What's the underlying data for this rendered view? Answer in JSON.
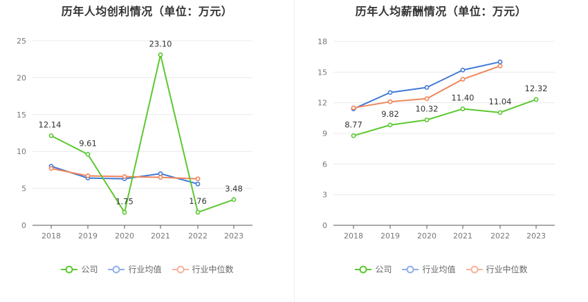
{
  "chart_data": [
    {
      "type": "line",
      "title": "历年人均创利情况（单位：万元）",
      "categories": [
        "2018",
        "2019",
        "2020",
        "2021",
        "2022",
        "2023"
      ],
      "ylim": [
        0,
        25
      ],
      "yticks": [
        "0",
        "5",
        "10",
        "15",
        "20",
        "25"
      ],
      "series": [
        {
          "name": "公司",
          "color": "#5ac82f",
          "values": [
            12.14,
            9.61,
            1.75,
            23.1,
            1.76,
            3.48
          ],
          "labels": [
            "12.14",
            "9.61",
            "1.75",
            "23.10",
            "1.76",
            "3.48"
          ]
        },
        {
          "name": "行业均值",
          "color": "#3f78d8",
          "values": [
            8.0,
            6.4,
            6.3,
            7.0,
            5.6,
            null
          ]
        },
        {
          "name": "行业中位数",
          "color": "#f0845a",
          "values": [
            7.7,
            6.7,
            6.6,
            6.5,
            6.3,
            null
          ]
        }
      ]
    },
    {
      "type": "line",
      "title": "历年人均薪酬情况（单位：万元）",
      "categories": [
        "2018",
        "2019",
        "2020",
        "2021",
        "2022",
        "2023"
      ],
      "ylim": [
        0,
        18
      ],
      "yticks": [
        "0",
        "3",
        "6",
        "9",
        "12",
        "15",
        "18"
      ],
      "series": [
        {
          "name": "公司",
          "color": "#5ac82f",
          "values": [
            8.77,
            9.82,
            10.32,
            11.4,
            11.04,
            12.32
          ],
          "labels": [
            "8.77",
            "9.82",
            "10.32",
            "11.40",
            "11.04",
            "12.32"
          ]
        },
        {
          "name": "行业均值",
          "color": "#3f78d8",
          "values": [
            11.4,
            13.0,
            13.5,
            15.2,
            16.0,
            null
          ]
        },
        {
          "name": "行业中位数",
          "color": "#f0845a",
          "values": [
            11.5,
            12.1,
            12.4,
            14.3,
            15.6,
            null
          ]
        }
      ]
    }
  ],
  "legend": [
    {
      "label": "公司",
      "color": "#5ac82f"
    },
    {
      "label": "行业均值",
      "color": "#8fb0ea"
    },
    {
      "label": "行业中位数",
      "color": "#f5b49c"
    }
  ]
}
